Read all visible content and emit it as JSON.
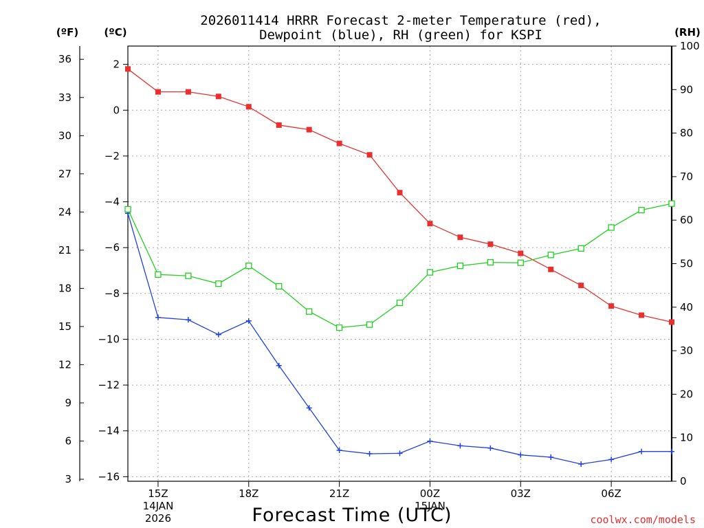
{
  "chart_data": {
    "type": "line",
    "title": [
      "2026011414 HRRR Forecast 2-meter Temperature (red),",
      "Dewpoint (blue), RH (green) for KSPI"
    ],
    "left_axis_unit": "(ºF)",
    "center_axis_unit": "(ºC)",
    "right_axis_unit": "(RH)",
    "xlabel": "Forecast Time (UTC)",
    "credit": "coolwx.com/models",
    "x_hours": [
      14,
      15,
      16,
      17,
      18,
      19,
      20,
      21,
      22,
      23,
      24,
      25,
      26,
      27,
      28,
      29,
      30,
      31,
      32
    ],
    "x_ticks": [
      {
        "hour": 15,
        "label": "15Z",
        "sub": [
          "14JAN",
          "2026"
        ]
      },
      {
        "hour": 18,
        "label": "18Z",
        "sub": []
      },
      {
        "hour": 21,
        "label": "21Z",
        "sub": []
      },
      {
        "hour": 24,
        "label": "00Z",
        "sub": [
          "15JAN"
        ]
      },
      {
        "hour": 27,
        "label": "03Z",
        "sub": []
      },
      {
        "hour": 30,
        "label": "06Z",
        "sub": []
      }
    ],
    "xlim": [
      14,
      32
    ],
    "ylim_c": [
      -16.2,
      2.8
    ],
    "ylim_rh": [
      0,
      100
    ],
    "celsius_ticks": [
      "2",
      "0",
      "−2",
      "−4",
      "−6",
      "−8",
      "−10",
      "−12",
      "−14",
      "−16"
    ],
    "fahrenheit_ticks": [
      "36",
      "33",
      "30",
      "27",
      "24",
      "21",
      "18",
      "15",
      "12",
      "9",
      "6",
      "3"
    ],
    "rh_ticks": [
      "100",
      "90",
      "80",
      "70",
      "60",
      "50",
      "40",
      "30",
      "20",
      "10",
      "0"
    ],
    "series": [
      {
        "name": "Temperature",
        "unit": "C",
        "color": "#e83030",
        "marker": "filled-square",
        "values": [
          1.8,
          0.8,
          0.8,
          0.6,
          0.15,
          -0.65,
          -0.85,
          -1.45,
          -1.95,
          -3.6,
          -4.95,
          -5.55,
          -5.85,
          -6.25,
          -6.95,
          -7.65,
          -8.55,
          -8.95,
          -9.25
        ]
      },
      {
        "name": "Dewpoint",
        "unit": "C",
        "color": "#2040e0",
        "marker": "plus",
        "values": [
          -4.5,
          -9.05,
          -9.15,
          -9.8,
          -9.2,
          -11.15,
          -13.0,
          -14.85,
          -15.0,
          -14.98,
          -14.45,
          -14.65,
          -14.75,
          -15.05,
          -15.15,
          -15.45,
          -15.25,
          -14.9,
          -14.9
        ]
      },
      {
        "name": "RH",
        "unit": "%",
        "color": "#20d020",
        "marker": "open-square",
        "values": [
          62.5,
          47.5,
          47.2,
          45.4,
          49.5,
          44.8,
          39.0,
          35.3,
          36.0,
          41.0,
          48.0,
          49.5,
          50.3,
          50.2,
          52.0,
          53.5,
          58.3,
          62.3,
          63.8
        ]
      }
    ]
  }
}
